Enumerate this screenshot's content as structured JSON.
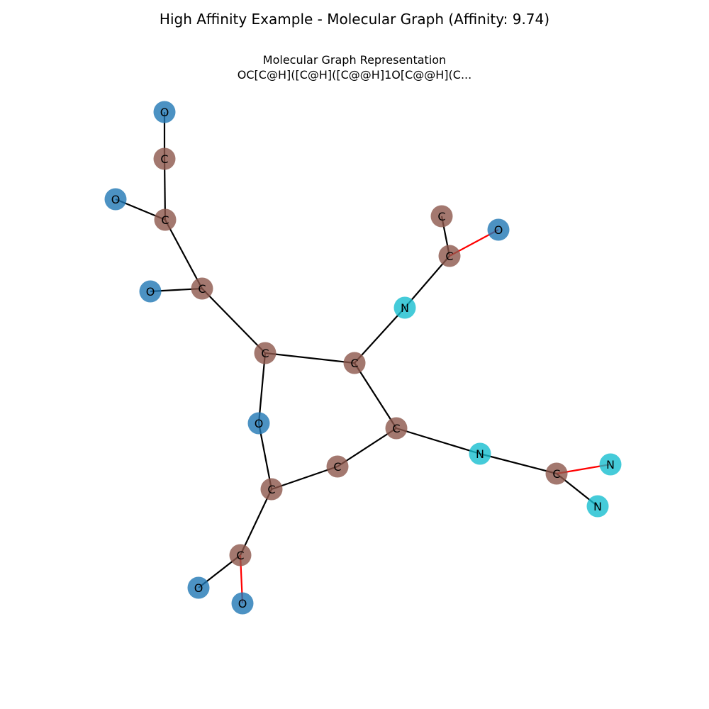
{
  "title": "High Affinity Example - Molecular Graph (Affinity: 9.74)",
  "subtitle": "Molecular Graph Representation",
  "smiles": "OC[C@H]([C@H]([C@@H]1O[C@@H](C...",
  "colors": {
    "C": "#8c564b",
    "O": "#1f77b4",
    "N": "#17becf",
    "single": "#000000",
    "double": "#ff0000"
  },
  "atoms": [
    {
      "id": "O1",
      "element": "O",
      "label": "O"
    },
    {
      "id": "C2",
      "element": "C",
      "label": "C"
    },
    {
      "id": "O3",
      "element": "O",
      "label": "O"
    },
    {
      "id": "C4",
      "element": "C",
      "label": "C"
    },
    {
      "id": "O5",
      "element": "O",
      "label": "O"
    },
    {
      "id": "C6",
      "element": "C",
      "label": "C"
    },
    {
      "id": "C7",
      "element": "C",
      "label": "C"
    },
    {
      "id": "O8",
      "element": "O",
      "label": "O"
    },
    {
      "id": "C9",
      "element": "C",
      "label": "C"
    },
    {
      "id": "C10",
      "element": "C",
      "label": "C"
    },
    {
      "id": "O11",
      "element": "O",
      "label": "O"
    },
    {
      "id": "O12",
      "element": "O",
      "label": "O"
    },
    {
      "id": "C13",
      "element": "C",
      "label": "C"
    },
    {
      "id": "C14",
      "element": "C",
      "label": "C"
    },
    {
      "id": "C15",
      "element": "C",
      "label": "C"
    },
    {
      "id": "N16",
      "element": "N",
      "label": "N"
    },
    {
      "id": "C17",
      "element": "C",
      "label": "C"
    },
    {
      "id": "C18",
      "element": "C",
      "label": "C"
    },
    {
      "id": "O19",
      "element": "O",
      "label": "O"
    },
    {
      "id": "N20",
      "element": "N",
      "label": "N"
    },
    {
      "id": "C21",
      "element": "C",
      "label": "C"
    },
    {
      "id": "N22",
      "element": "N",
      "label": "N"
    },
    {
      "id": "N23",
      "element": "N",
      "label": "N"
    }
  ],
  "bonds": [
    {
      "a": "O1",
      "b": "C2",
      "order": 1
    },
    {
      "a": "C2",
      "b": "C4",
      "order": 1
    },
    {
      "a": "O3",
      "b": "C4",
      "order": 1
    },
    {
      "a": "C4",
      "b": "C6",
      "order": 1
    },
    {
      "a": "O5",
      "b": "C6",
      "order": 1
    },
    {
      "a": "C6",
      "b": "C7",
      "order": 1
    },
    {
      "a": "C7",
      "b": "C14",
      "order": 1
    },
    {
      "a": "C7",
      "b": "O8",
      "order": 1
    },
    {
      "a": "O8",
      "b": "C9",
      "order": 1
    },
    {
      "a": "C9",
      "b": "C10",
      "order": 1
    },
    {
      "a": "C10",
      "b": "O11",
      "order": 1
    },
    {
      "a": "C10",
      "b": "O12",
      "order": 2
    },
    {
      "a": "C9",
      "b": "C13",
      "order": 1
    },
    {
      "a": "C13",
      "b": "C15",
      "order": 1
    },
    {
      "a": "C14",
      "b": "C15",
      "order": 1
    },
    {
      "a": "C14",
      "b": "N16",
      "order": 1
    },
    {
      "a": "N16",
      "b": "C17",
      "order": 1
    },
    {
      "a": "C17",
      "b": "C18",
      "order": 1
    },
    {
      "a": "C17",
      "b": "O19",
      "order": 2
    },
    {
      "a": "C15",
      "b": "N20",
      "order": 1
    },
    {
      "a": "N20",
      "b": "C21",
      "order": 1
    },
    {
      "a": "C21",
      "b": "N22",
      "order": 2
    },
    {
      "a": "C21",
      "b": "N23",
      "order": 1
    }
  ]
}
